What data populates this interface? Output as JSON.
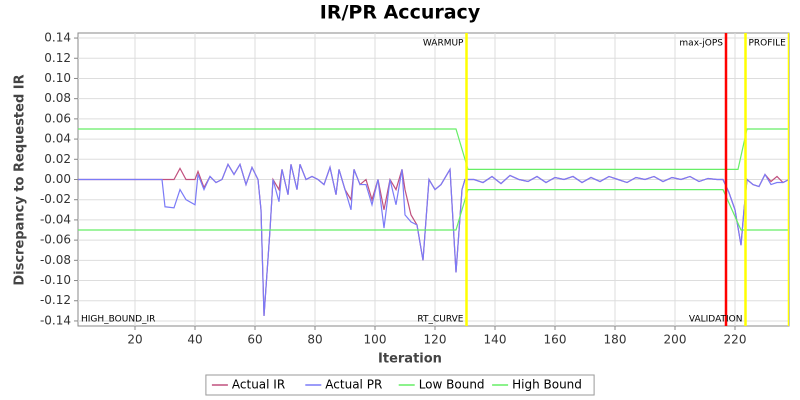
{
  "chart_data": {
    "type": "line",
    "title": "IR/PR Accuracy",
    "xlabel": "Iteration",
    "ylabel": "Discrepancy to Requested IR",
    "xlim": [
      1,
      238
    ],
    "xticks": [
      20,
      40,
      60,
      80,
      100,
      120,
      140,
      160,
      180,
      200,
      220
    ],
    "ylim": [
      -0.145,
      0.145
    ],
    "yticks": [
      {
        "value": -0.14,
        "label": "-0.14"
      },
      {
        "value": -0.12,
        "label": "-0.12"
      },
      {
        "value": -0.1,
        "label": "-0.10"
      },
      {
        "value": -0.08,
        "label": "-0.08"
      },
      {
        "value": -0.06,
        "label": "-0.06"
      },
      {
        "value": -0.04,
        "label": "-0.04"
      },
      {
        "value": -0.02,
        "label": "-0.02"
      },
      {
        "value": 0,
        "label": "0.00"
      },
      {
        "value": 0.02,
        "label": "0.02"
      },
      {
        "value": 0.04,
        "label": "0.04"
      },
      {
        "value": 0.06,
        "label": "0.06"
      },
      {
        "value": 0.08,
        "label": "0.08"
      },
      {
        "value": 0.1,
        "label": "0.10"
      },
      {
        "value": 0.12,
        "label": "0.12"
      },
      {
        "value": 0.14,
        "label": "0.14"
      }
    ],
    "grid": true,
    "legend": "bottom",
    "series": [
      {
        "name": "Actual IR",
        "color": "#c0507e",
        "x": [
          1,
          29,
          30,
          33,
          35,
          37,
          40,
          41,
          43,
          45,
          47,
          49,
          51,
          53,
          55,
          57,
          59,
          61,
          62,
          63,
          65,
          66,
          68,
          69,
          71,
          72,
          74,
          75,
          77,
          79,
          81,
          83,
          85,
          87,
          88,
          90,
          92,
          93,
          95,
          97,
          99,
          101,
          103,
          105,
          107,
          109,
          110,
          112,
          114,
          116,
          118,
          119,
          120,
          122,
          124,
          125,
          127,
          129,
          130,
          133,
          136,
          139,
          142,
          145,
          148,
          151,
          154,
          157,
          160,
          163,
          166,
          169,
          172,
          175,
          178,
          181,
          184,
          187,
          190,
          193,
          196,
          199,
          202,
          205,
          208,
          211,
          214,
          216,
          218,
          220,
          222,
          223,
          224,
          226,
          228,
          230,
          232,
          234,
          236,
          238
        ],
        "values": [
          0,
          0,
          0,
          0,
          0.011,
          0,
          0,
          0.008,
          -0.008,
          0.003,
          -0.003,
          0,
          0.015,
          0.005,
          0.015,
          -0.005,
          0.012,
          0,
          -0.03,
          -0.135,
          -0.05,
          0,
          -0.01,
          0.01,
          -0.015,
          0.015,
          -0.01,
          0.015,
          0,
          0.003,
          0,
          -0.005,
          0.012,
          -0.015,
          0.01,
          -0.01,
          -0.02,
          0.01,
          -0.005,
          0,
          -0.02,
          0,
          -0.03,
          0,
          -0.01,
          0.01,
          -0.01,
          -0.035,
          -0.045,
          -0.08,
          0,
          -0.005,
          -0.01,
          -0.005,
          0.005,
          0.01,
          -0.092,
          -0.01,
          0,
          0,
          -0.003,
          0.003,
          -0.004,
          0.004,
          0,
          -0.002,
          0.003,
          -0.003,
          0.002,
          0,
          0.003,
          -0.003,
          0.002,
          -0.002,
          0.003,
          0,
          -0.003,
          0.002,
          0,
          0.003,
          -0.002,
          0.002,
          0,
          0.003,
          -0.002,
          0.001,
          0,
          0,
          -0.013,
          -0.03,
          -0.065,
          -0.03,
          0,
          -0.005,
          -0.007,
          0.005,
          -0.002,
          0.003,
          -0.003,
          0
        ]
      },
      {
        "name": "Actual PR",
        "color": "#7b7bf7",
        "x": [
          1,
          29,
          30,
          33,
          35,
          37,
          40,
          41,
          43,
          45,
          47,
          49,
          51,
          53,
          55,
          57,
          59,
          61,
          62,
          63,
          65,
          66,
          68,
          69,
          71,
          72,
          74,
          75,
          77,
          79,
          81,
          83,
          85,
          87,
          88,
          90,
          92,
          93,
          95,
          97,
          99,
          101,
          103,
          105,
          107,
          109,
          110,
          112,
          114,
          116,
          118,
          119,
          120,
          122,
          124,
          125,
          127,
          129,
          130,
          133,
          136,
          139,
          142,
          145,
          148,
          151,
          154,
          157,
          160,
          163,
          166,
          169,
          172,
          175,
          178,
          181,
          184,
          187,
          190,
          193,
          196,
          199,
          202,
          205,
          208,
          211,
          214,
          216,
          218,
          220,
          222,
          223,
          224,
          226,
          228,
          230,
          232,
          234,
          236,
          238
        ],
        "values": [
          0,
          0,
          -0.027,
          -0.028,
          -0.01,
          -0.02,
          -0.025,
          0.005,
          -0.01,
          0.003,
          -0.003,
          0,
          0.015,
          0.005,
          0.015,
          -0.005,
          0.012,
          0,
          -0.03,
          -0.135,
          -0.05,
          0,
          -0.022,
          0.01,
          -0.015,
          0.015,
          -0.01,
          0.015,
          0,
          0.003,
          0,
          -0.005,
          0.012,
          -0.015,
          0.01,
          -0.01,
          -0.03,
          0.01,
          -0.005,
          -0.005,
          -0.025,
          0,
          -0.048,
          0,
          -0.025,
          0.01,
          -0.035,
          -0.042,
          -0.045,
          -0.08,
          0,
          -0.005,
          -0.01,
          -0.005,
          0.005,
          0.01,
          -0.092,
          -0.01,
          0,
          0,
          -0.003,
          0.003,
          -0.004,
          0.004,
          0,
          -0.002,
          0.003,
          -0.003,
          0.002,
          0,
          0.003,
          -0.003,
          0.002,
          -0.002,
          0.003,
          0,
          -0.003,
          0.002,
          0,
          0.003,
          -0.002,
          0.002,
          0,
          0.003,
          -0.002,
          0.001,
          0,
          0,
          -0.013,
          -0.03,
          -0.065,
          -0.03,
          0,
          -0.005,
          -0.007,
          0.005,
          -0.005,
          -0.003,
          -0.003,
          0
        ]
      },
      {
        "name": "Low Bound",
        "color": "#66ee66",
        "x": [
          1,
          127,
          131,
          216,
          222,
          238
        ],
        "values": [
          -0.05,
          -0.05,
          -0.01,
          -0.01,
          -0.05,
          -0.05
        ]
      },
      {
        "name": "High Bound",
        "color": "#66ee66",
        "x": [
          1,
          127,
          131,
          221,
          224,
          238
        ],
        "values": [
          0.05,
          0.05,
          0.01,
          0.01,
          0.05,
          0.05
        ]
      }
    ],
    "markers": [
      {
        "x": 130.5,
        "color": "#ffff00"
      },
      {
        "x": 217,
        "color": "#ff0000"
      },
      {
        "x": 223.5,
        "color": "#ffff00"
      },
      {
        "x": 238,
        "color": "#ffff00"
      }
    ],
    "annotations": [
      {
        "x": 130.5,
        "text": "WARMUP",
        "position": "top",
        "align": "end"
      },
      {
        "x": 217,
        "text": "max-jOPS",
        "position": "top",
        "align": "end"
      },
      {
        "x": 223.5,
        "text": "PROFILE",
        "position": "top",
        "align": "start"
      },
      {
        "x": 1,
        "text": "HIGH_BOUND_IR",
        "position": "bottom",
        "align": "start"
      },
      {
        "x": 130.5,
        "text": "RT_CURVE",
        "position": "bottom",
        "align": "end"
      },
      {
        "x": 223.5,
        "text": "VALIDATION",
        "position": "bottom",
        "align": "end"
      }
    ]
  }
}
